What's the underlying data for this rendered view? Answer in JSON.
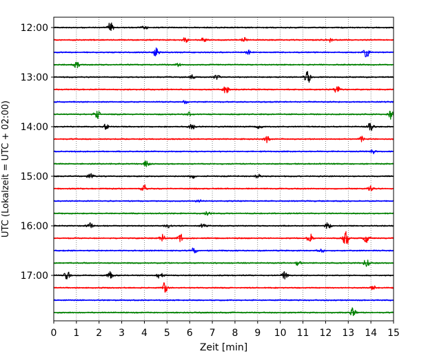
{
  "chart_data": {
    "type": "line",
    "title": "",
    "xlabel": "Zeit  [min]",
    "ylabel": "UTC (Lokalzeit = UTC + 02:00)",
    "xlim": [
      0,
      15
    ],
    "x_ticks": [
      "0",
      "1",
      "2",
      "3",
      "4",
      "5",
      "6",
      "7",
      "8",
      "9",
      "10",
      "11",
      "12",
      "13",
      "14",
      "15"
    ],
    "y_ticks": [
      "12:00",
      "13:00",
      "14:00",
      "15:00",
      "16:00",
      "17:00"
    ],
    "y_tick_rows": [
      0,
      4,
      8,
      12,
      16,
      20
    ],
    "grid": "vertical dotted lines at each minute",
    "legend": "none",
    "colors": [
      "#000000",
      "#ff0000",
      "#0000ff",
      "#008000"
    ],
    "series": [
      {
        "start": "12:00",
        "color": "#000000",
        "events": [
          [
            2.5,
            1.0
          ],
          [
            4.0,
            0.5
          ]
        ]
      },
      {
        "start": "12:15",
        "color": "#ff0000",
        "events": [
          [
            5.8,
            0.5
          ],
          [
            6.6,
            0.6
          ],
          [
            8.4,
            0.5
          ],
          [
            12.2,
            0.4
          ]
        ]
      },
      {
        "start": "12:30",
        "color": "#0000ff",
        "events": [
          [
            4.5,
            0.9
          ],
          [
            8.6,
            0.4
          ],
          [
            13.8,
            1.0
          ]
        ]
      },
      {
        "start": "12:45",
        "color": "#008000",
        "events": [
          [
            1.0,
            0.6
          ],
          [
            5.5,
            0.3
          ]
        ]
      },
      {
        "start": "13:00",
        "color": "#000000",
        "events": [
          [
            6.1,
            0.4
          ],
          [
            7.2,
            0.5
          ],
          [
            11.2,
            1.5
          ]
        ]
      },
      {
        "start": "13:15",
        "color": "#ff0000",
        "events": [
          [
            7.6,
            0.9
          ],
          [
            12.5,
            0.7
          ]
        ]
      },
      {
        "start": "13:30",
        "color": "#0000ff",
        "events": [
          [
            5.8,
            0.3
          ]
        ]
      },
      {
        "start": "13:45",
        "color": "#008000",
        "events": [
          [
            1.9,
            1.0
          ],
          [
            6.0,
            0.4
          ],
          [
            14.9,
            1.0
          ]
        ]
      },
      {
        "start": "14:00",
        "color": "#000000",
        "events": [
          [
            2.3,
            0.5
          ],
          [
            6.1,
            0.5
          ],
          [
            9.1,
            0.4
          ],
          [
            14.0,
            1.0
          ]
        ]
      },
      {
        "start": "14:15",
        "color": "#ff0000",
        "events": [
          [
            9.4,
            0.7
          ],
          [
            13.6,
            0.5
          ]
        ]
      },
      {
        "start": "14:30",
        "color": "#0000ff",
        "events": [
          [
            14.1,
            0.4
          ]
        ]
      },
      {
        "start": "14:45",
        "color": "#008000",
        "events": [
          [
            4.1,
            0.6
          ]
        ]
      },
      {
        "start": "15:00",
        "color": "#000000",
        "events": [
          [
            1.6,
            0.8
          ],
          [
            6.1,
            0.5
          ],
          [
            9.0,
            0.4
          ]
        ]
      },
      {
        "start": "15:15",
        "color": "#ff0000",
        "events": [
          [
            4.0,
            0.8
          ],
          [
            14.0,
            0.5
          ]
        ]
      },
      {
        "start": "15:30",
        "color": "#0000ff",
        "events": [
          [
            6.4,
            0.3
          ]
        ]
      },
      {
        "start": "15:45",
        "color": "#008000",
        "events": [
          [
            6.8,
            0.4
          ]
        ]
      },
      {
        "start": "16:00",
        "color": "#000000",
        "events": [
          [
            1.6,
            0.6
          ],
          [
            5.0,
            0.5
          ],
          [
            6.6,
            0.5
          ],
          [
            12.1,
            0.6
          ]
        ]
      },
      {
        "start": "16:15",
        "color": "#ff0000",
        "events": [
          [
            4.8,
            0.7
          ],
          [
            5.6,
            0.8
          ],
          [
            11.3,
            1.0
          ],
          [
            12.9,
            1.8
          ],
          [
            13.8,
            0.9
          ]
        ]
      },
      {
        "start": "16:30",
        "color": "#0000ff",
        "events": [
          [
            6.2,
            0.6
          ],
          [
            11.8,
            0.4
          ]
        ]
      },
      {
        "start": "16:45",
        "color": "#008000",
        "events": [
          [
            10.8,
            0.6
          ],
          [
            13.8,
            0.8
          ]
        ]
      },
      {
        "start": "17:00",
        "color": "#000000",
        "events": [
          [
            0.6,
            1.0
          ],
          [
            2.5,
            0.7
          ],
          [
            4.7,
            0.8
          ],
          [
            10.2,
            0.8
          ]
        ]
      },
      {
        "start": "17:15",
        "color": "#ff0000",
        "events": [
          [
            4.9,
            1.1
          ],
          [
            14.1,
            0.5
          ]
        ]
      },
      {
        "start": "17:30",
        "color": "#0000ff",
        "events": []
      },
      {
        "start": "17:45",
        "color": "#008000",
        "events": [
          [
            13.2,
            1.0
          ]
        ]
      }
    ]
  }
}
